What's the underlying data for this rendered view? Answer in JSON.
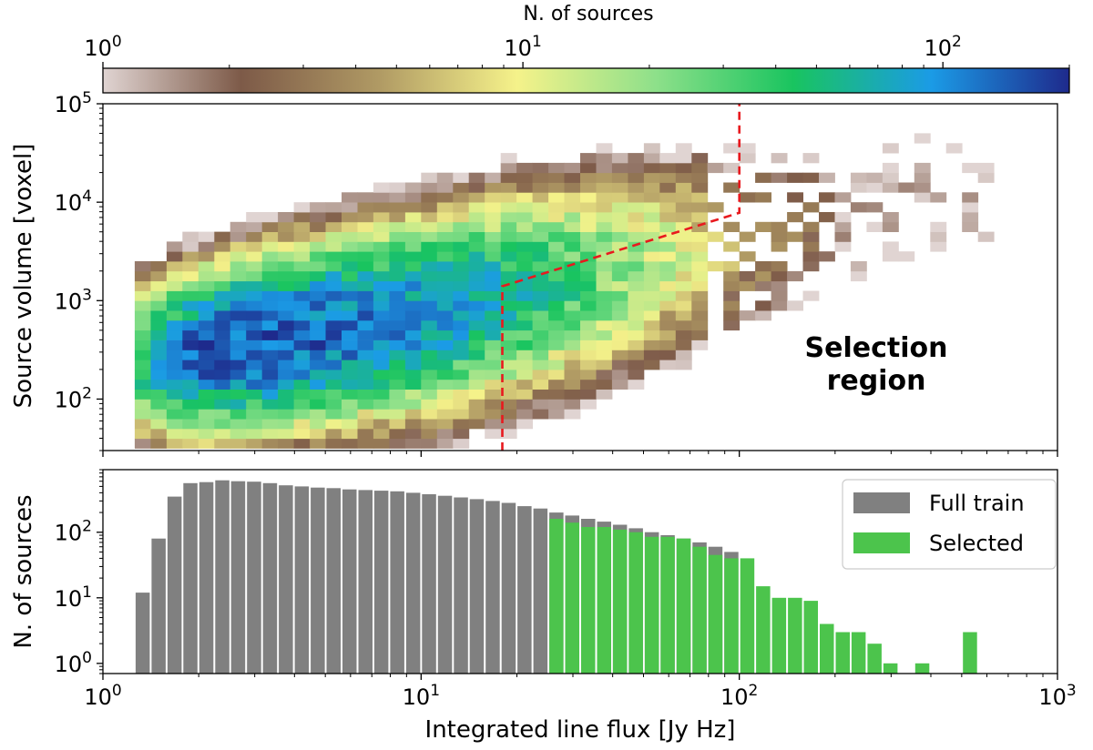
{
  "colors": {
    "colormap": [
      "#e0d4d2",
      "#7d5a48",
      "#b09a64",
      "#f5f28a",
      "#8ee08a",
      "#19c45f",
      "#1b9be6",
      "#1e2a8c"
    ],
    "full_train": "#808080",
    "selected": "#4cc44c",
    "selection_line": "#e8191e",
    "selection_text": "#ff0000"
  },
  "chart_data": [
    {
      "type": "heatmap",
      "xlabel": "",
      "ylabel": "Source volume [voxel]",
      "x_scale": "log",
      "y_scale": "log",
      "xlim": [
        1,
        1000
      ],
      "ylim": [
        30,
        100000
      ],
      "y_ticks": [
        100,
        1000,
        10000,
        100000
      ],
      "y_tick_labels": [
        {
          "base": "10",
          "exp": "2"
        },
        {
          "base": "10",
          "exp": "3"
        },
        {
          "base": "10",
          "exp": "4"
        },
        {
          "base": "10",
          "exp": "5"
        }
      ],
      "colorbar": {
        "label": "N. of sources",
        "scale": "log",
        "range": [
          1,
          200
        ],
        "ticks": [
          1,
          10,
          100
        ],
        "tick_labels": [
          {
            "base": "10",
            "exp": "0"
          },
          {
            "base": "10",
            "exp": "1"
          },
          {
            "base": "10",
            "exp": "2"
          }
        ]
      },
      "density_model": {
        "ridge_log_volume": [
          [
            0.13,
            2.4
          ],
          [
            0.5,
            2.58
          ],
          [
            1.0,
            2.85
          ],
          [
            1.5,
            3.2
          ],
          [
            2.0,
            3.6
          ],
          [
            2.5,
            4.0
          ]
        ],
        "spread_log_volume": [
          [
            0.13,
            0.35
          ],
          [
            1.0,
            0.45
          ],
          [
            2.0,
            0.5
          ],
          [
            2.5,
            0.55
          ]
        ],
        "peak_count_curve": [
          [
            0.1,
            40
          ],
          [
            0.3,
            150
          ],
          [
            0.5,
            170
          ],
          [
            0.8,
            130
          ],
          [
            1.1,
            90
          ],
          [
            1.3,
            60
          ],
          [
            1.6,
            25
          ],
          [
            1.8,
            12
          ],
          [
            2.0,
            5
          ],
          [
            2.3,
            1.5
          ],
          [
            2.8,
            1
          ]
        ]
      },
      "selection_boundary": [
        [
          18,
          30
        ],
        [
          18,
          1400
        ],
        [
          100,
          7800
        ],
        [
          100,
          100000
        ]
      ],
      "annotation": "Selection\nregion"
    },
    {
      "type": "bar",
      "xlabel": "Integrated line flux [Jy Hz]",
      "ylabel": "N. of sources",
      "x_scale": "log",
      "y_scale": "log",
      "xlim": [
        1,
        1000
      ],
      "ylim": [
        0.7,
        900
      ],
      "x_ticks": [
        1,
        10,
        100,
        1000
      ],
      "x_tick_labels": [
        {
          "base": "10",
          "exp": "0"
        },
        {
          "base": "10",
          "exp": "1"
        },
        {
          "base": "10",
          "exp": "2"
        },
        {
          "base": "10",
          "exp": "3"
        }
      ],
      "y_ticks": [
        1,
        10,
        100
      ],
      "y_tick_labels": [
        {
          "base": "10",
          "exp": "0"
        },
        {
          "base": "10",
          "exp": "1"
        },
        {
          "base": "10",
          "exp": "2"
        }
      ],
      "bin_edges_log10": [
        0.1,
        0.15,
        0.2,
        0.25,
        0.3,
        0.35,
        0.4,
        0.45,
        0.5,
        0.55,
        0.6,
        0.65,
        0.7,
        0.75,
        0.8,
        0.85,
        0.9,
        0.95,
        1.0,
        1.05,
        1.1,
        1.15,
        1.2,
        1.25,
        1.3,
        1.35,
        1.4,
        1.45,
        1.5,
        1.55,
        1.6,
        1.65,
        1.7,
        1.75,
        1.8,
        1.85,
        1.9,
        1.95,
        2.0,
        2.05,
        2.1,
        2.15,
        2.2,
        2.25,
        2.3,
        2.35,
        2.4,
        2.45,
        2.5,
        2.55,
        2.6,
        2.65,
        2.7,
        2.75,
        2.8
      ],
      "series": [
        {
          "name": "Full train",
          "values": [
            12,
            80,
            350,
            560,
            580,
            620,
            600,
            590,
            560,
            520,
            500,
            480,
            470,
            450,
            440,
            430,
            420,
            400,
            380,
            360,
            340,
            320,
            300,
            280,
            250,
            230,
            200,
            180,
            160,
            145,
            130,
            115,
            100,
            90,
            80,
            70,
            60,
            50,
            0,
            0,
            0,
            0,
            0,
            0,
            0,
            0,
            0,
            0,
            0,
            0,
            0,
            0,
            0,
            0
          ]
        },
        {
          "name": "Selected",
          "values": [
            0,
            0,
            0,
            0,
            0,
            0,
            0,
            0,
            0,
            0,
            0,
            0,
            0,
            0,
            0,
            0,
            0,
            0,
            0,
            0,
            0,
            0,
            0,
            0,
            0,
            0,
            160,
            140,
            120,
            120,
            110,
            100,
            85,
            85,
            80,
            60,
            45,
            40,
            40,
            15,
            10,
            10,
            9,
            4,
            3,
            3,
            2,
            1,
            0,
            1,
            0,
            0,
            3,
            0
          ]
        }
      ]
    }
  ]
}
